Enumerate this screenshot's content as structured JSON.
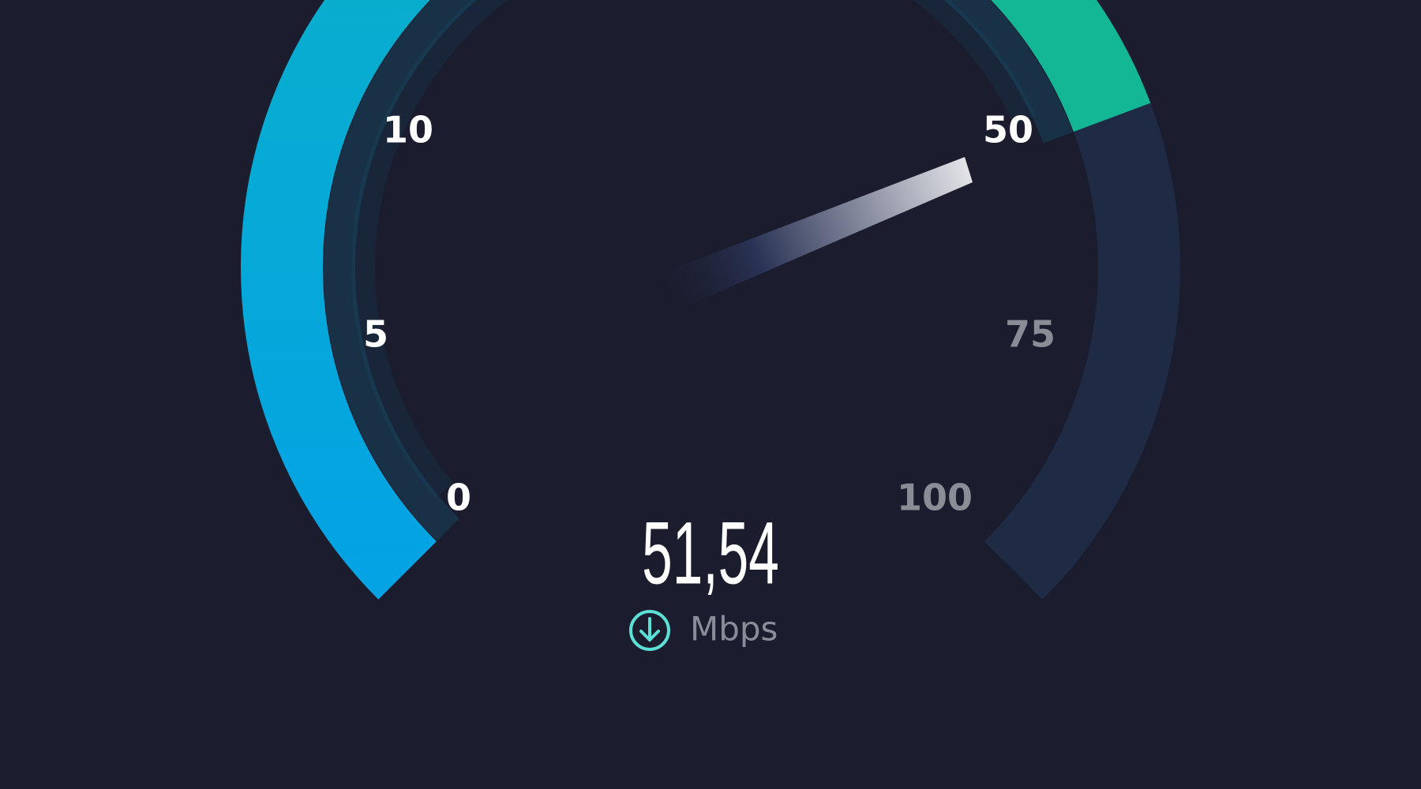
{
  "gauge": {
    "ticks": [
      "0",
      "5",
      "10",
      "50",
      "75",
      "100"
    ],
    "reading": "51,54",
    "unit": "Mbps"
  }
}
